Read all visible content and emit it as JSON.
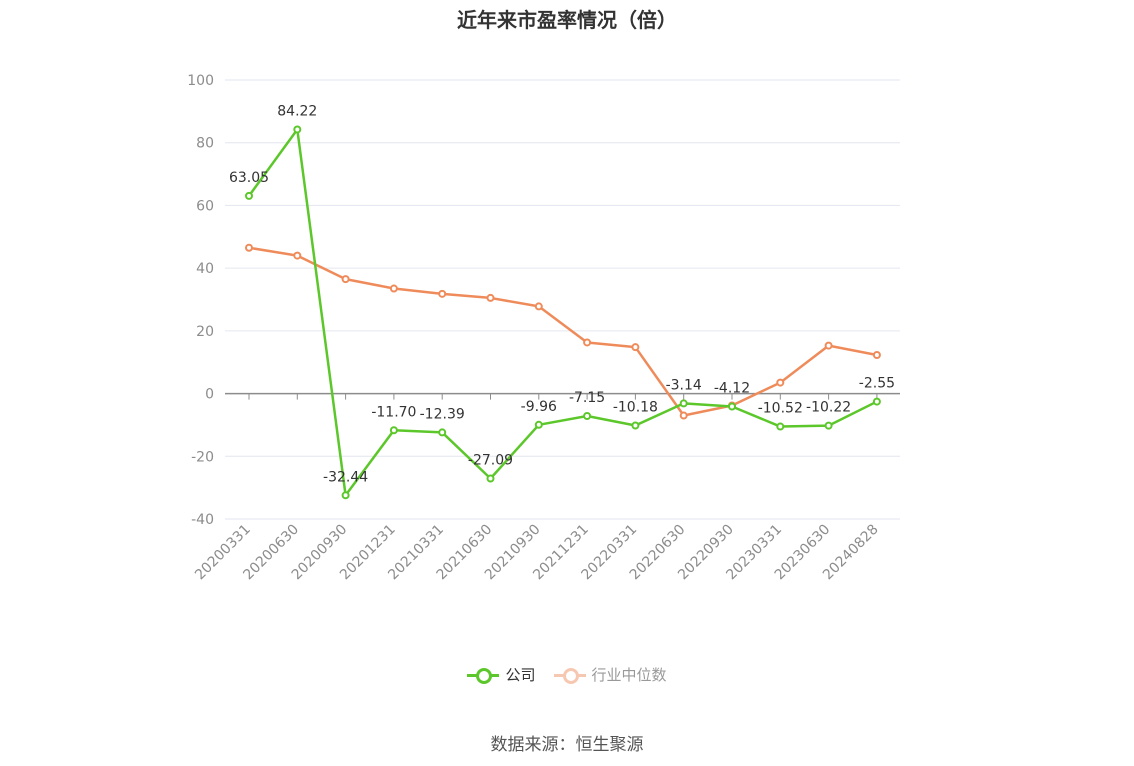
{
  "chart_data": {
    "type": "line",
    "title": "近年来市盈率情况（倍）",
    "categories": [
      "20200331",
      "20200630",
      "20200930",
      "20201231",
      "20210331",
      "20210630",
      "20210930",
      "20211231",
      "20220331",
      "20220630",
      "20220930",
      "20230331",
      "20230630",
      "20240828"
    ],
    "ylim": [
      -40,
      100
    ],
    "yticks": [
      -40,
      -20,
      0,
      20,
      40,
      60,
      80,
      100
    ],
    "grid": true,
    "legend_position": "bottom",
    "series": [
      {
        "name": "公司",
        "color": "#5cc72a",
        "values": [
          63.05,
          84.22,
          -32.44,
          -11.7,
          -12.39,
          -27.09,
          -9.96,
          -7.15,
          -10.18,
          -3.14,
          -4.12,
          -10.52,
          -10.22,
          -2.55
        ],
        "labels": [
          "63.05",
          "84.22",
          "-32.44",
          "-11.70",
          "-12.39",
          "-27.09",
          "-9.96",
          "-7.15",
          "-10.18",
          "-3.14",
          "-4.12",
          "-10.52",
          "-10.22",
          "-2.55"
        ]
      },
      {
        "name": "行业中位数",
        "color": "#ef8b5a",
        "values": [
          46.5,
          44.0,
          36.5,
          33.5,
          31.8,
          30.5,
          27.8,
          16.3,
          14.8,
          -7.0,
          -3.8,
          3.5,
          15.3,
          12.3
        ]
      }
    ]
  },
  "source": "数据来源：恒生聚源"
}
